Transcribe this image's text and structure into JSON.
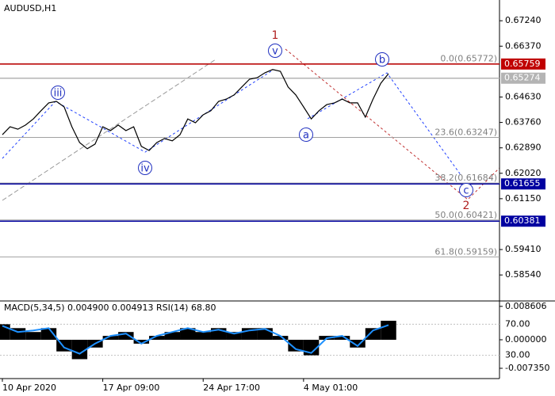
{
  "chart_data": [
    {
      "type": "line",
      "title": "AUDUSD,H1",
      "categories": [
        "10 Apr 2020",
        null,
        null,
        null,
        null,
        null,
        null,
        null,
        null,
        null,
        null,
        null,
        null,
        "17 Apr 09:00",
        null,
        null,
        null,
        null,
        null,
        null,
        null,
        null,
        null,
        null,
        null,
        null,
        "24 Apr 17:00",
        null,
        null,
        null,
        null,
        null,
        null,
        null,
        null,
        null,
        null,
        null,
        null,
        "4 May 01:00",
        null,
        null,
        null,
        null,
        null,
        null,
        null,
        null,
        null,
        null,
        null
      ],
      "values": [
        0.6334,
        0.6361,
        0.6353,
        0.6367,
        0.6388,
        0.6416,
        0.6443,
        0.6448,
        0.6429,
        0.6361,
        0.6307,
        0.6286,
        0.6302,
        0.6361,
        0.6348,
        0.6367,
        0.6348,
        0.6361,
        0.6294,
        0.628,
        0.6307,
        0.6321,
        0.6313,
        0.6334,
        0.6388,
        0.6375,
        0.6402,
        0.6416,
        0.6448,
        0.6456,
        0.647,
        0.6497,
        0.6524,
        0.6529,
        0.6546,
        0.6557,
        0.6551,
        0.6497,
        0.647,
        0.6429,
        0.6388,
        0.6416,
        0.6437,
        0.6443,
        0.6456,
        0.6443,
        0.6443,
        0.6394,
        0.6456,
        0.651,
        0.6543
      ],
      "color": "#000000",
      "ylim": [
        0.5765,
        0.6795
      ],
      "yticks": [
        {
          "value": 0.6724,
          "label": "0.67240"
        },
        {
          "value": 0.6637,
          "label": "0.66370"
        },
        {
          "value": 0.6463,
          "label": "0.64630"
        },
        {
          "value": 0.6376,
          "label": "0.63760"
        },
        {
          "value": 0.6289,
          "label": "0.62890"
        },
        {
          "value": 0.6202,
          "label": "0.62020"
        },
        {
          "value": 0.6115,
          "label": "0.61150"
        },
        {
          "value": 0.5941,
          "label": "0.59410"
        },
        {
          "value": 0.5854,
          "label": "0.58540"
        }
      ],
      "fib_levels": [
        {
          "value": 0.65772,
          "label": "0.0(0.65772)"
        },
        {
          "value": 0.63247,
          "label": "23.6(0.63247)"
        },
        {
          "value": 0.61684,
          "label": "38.2(0.61684)"
        },
        {
          "value": 0.60421,
          "label": "50.0(0.60421)"
        },
        {
          "value": 0.59159,
          "label": "61.8(0.59159)"
        }
      ],
      "price_lines": [
        {
          "value": 0.65759,
          "color": "#c00000"
        },
        {
          "value": 0.65274,
          "color": "#b4b4b4"
        },
        {
          "value": 0.61655,
          "color": "#0000a0"
        },
        {
          "value": 0.60381,
          "color": "#0000a0"
        }
      ],
      "wave_labels": [
        "1",
        "v",
        "iii",
        "iv",
        "a",
        "b",
        "c",
        "2"
      ]
    },
    {
      "type": "macd",
      "title": "MACD(5,34,5) 0.004900 0.004913 RSI(14) 68.80",
      "values": [
        0.004,
        0.003,
        0.002,
        0.003,
        -0.003,
        -0.005,
        -0.002,
        0.001,
        0.002,
        -0.001,
        0.001,
        0.002,
        0.003,
        0.002,
        0.003,
        0.002,
        0.003,
        0.003,
        0.001,
        -0.003,
        -0.004,
        0.001,
        0.001,
        -0.002,
        0.003,
        0.0049
      ],
      "color": "#000000",
      "rsi_values": [
        68,
        60,
        62,
        65,
        40,
        32,
        45,
        55,
        58,
        45,
        55,
        60,
        65,
        60,
        63,
        58,
        62,
        64,
        55,
        38,
        33,
        52,
        55,
        42,
        62,
        69
      ],
      "rsi_color": "#1e90ff",
      "ylim": [
        -0.01,
        0.01
      ],
      "yticks": [
        0.008606,
        {
          "value": 0,
          "label": "0.000000"
        },
        {
          "value": -0.00735,
          "label": "-0.007350"
        }
      ],
      "y2lim": [
        0,
        100
      ],
      "y2ticks": [
        {
          "value": 70,
          "label": "70.00"
        },
        {
          "value": 30,
          "label": "30.00"
        }
      ]
    }
  ]
}
